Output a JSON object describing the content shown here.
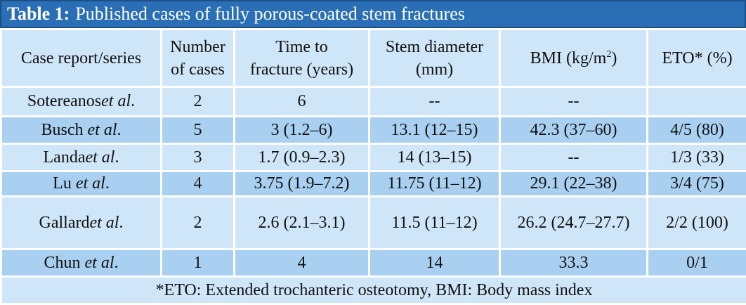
{
  "title": {
    "label": "Table 1:",
    "text": "Published cases of fully porous-coated stem fractures"
  },
  "headers": {
    "case": "Case report/series",
    "number_line1": "Number",
    "number_line2": "of cases",
    "time_line1": "Time to",
    "time_line2": "fracture (years)",
    "stem_line1": "Stem diameter",
    "stem_line2": "(mm)",
    "bmi_main": "BMI (kg/m",
    "bmi_sup": "2",
    "bmi_close": ")",
    "eto": "ETO* (%)"
  },
  "rows": [
    {
      "author": "Sotereanos",
      "etal": "et al",
      "dot": ".",
      "n": "2",
      "time": "6",
      "stem": "--",
      "bmi": "--",
      "eto": ""
    },
    {
      "author": "Busch ",
      "etal": "et al",
      "dot": ".",
      "n": "5",
      "time": "3 (1.2–6)",
      "stem": "13.1 (12–15)",
      "bmi": "42.3 (37–60)",
      "eto": "4/5 (80)"
    },
    {
      "author": "Landa",
      "etal": "et al",
      "dot": ".",
      "n": "3",
      "time": "1.7 (0.9–2.3)",
      "stem": "14 (13–15)",
      "bmi": "--",
      "eto": "1/3 (33)"
    },
    {
      "author": "Lu ",
      "etal": "et al",
      "dot": ".",
      "n": "4",
      "time": "3.75 (1.9–7.2)",
      "stem": "11.75 (11–12)",
      "bmi": "29.1 (22–38)",
      "eto": "3/4 (75)"
    },
    {
      "author": "Gallard",
      "etal": "et al",
      "dot": ".",
      "n": "2",
      "time": "2.6 (2.1–3.1)",
      "stem": "11.5 (11–12)",
      "bmi": "26.2 (24.7–27.7)",
      "eto": "2/2 (100)"
    },
    {
      "author": "Chun ",
      "etal": "et al",
      "dot": ".",
      "n": "1",
      "time": "4",
      "stem": "14",
      "bmi": "33.3",
      "eto": "0/1"
    }
  ],
  "footnote": "*ETO: Extended trochanteric osteotomy, BMI: Body mass index",
  "colors": {
    "title_bg": "#2a6fb6",
    "row_light": "#cfe6f8",
    "row_dark": "#a9d0f0"
  }
}
